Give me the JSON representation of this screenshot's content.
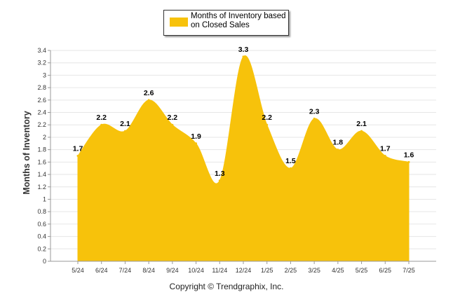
{
  "chart_data": {
    "type": "area",
    "legend": {
      "label": "Months of Inventory based on Closed Sales",
      "placement": "top-center"
    },
    "ylabel": "Months of Inventory",
    "xlabel": "",
    "ylim": [
      0,
      3.4
    ],
    "y_ticks": [
      0,
      0.2,
      0.4,
      0.6,
      0.8,
      1,
      1.2,
      1.4,
      1.6,
      1.8,
      2,
      2.2,
      2.4,
      2.6,
      2.8,
      3,
      3.2,
      3.4
    ],
    "y_tick_labels": [
      "0",
      "0.2",
      "0.4",
      "0.6",
      "0.8",
      "1",
      "1.2",
      "1.4",
      "1.6",
      "1.8",
      "2",
      "2.2",
      "2.4",
      "2.6",
      "2.8",
      "3",
      "3.2",
      "3.4"
    ],
    "grid": true,
    "categories": [
      "5/24",
      "6/24",
      "7/24",
      "8/24",
      "9/24",
      "10/24",
      "11/24",
      "12/24",
      "1/25",
      "2/25",
      "3/25",
      "4/25",
      "5/25",
      "6/25",
      "7/25"
    ],
    "series": [
      {
        "name": "Months of Inventory based on Closed Sales",
        "values": [
          1.7,
          2.2,
          2.1,
          2.6,
          2.2,
          1.9,
          1.3,
          3.3,
          2.2,
          1.5,
          2.3,
          1.8,
          2.1,
          1.7,
          1.6
        ],
        "labels": [
          "1.7",
          "2.2",
          "2.1",
          "2.6",
          "2.2",
          "1.9",
          "1.3",
          "3.3",
          "2.2",
          "1.5",
          "2.3",
          "1.8",
          "2.1",
          "1.7",
          "1.6"
        ],
        "color": "#f7c20b"
      }
    ]
  },
  "footer": {
    "copyright": "Copyright © Trendgraphix, Inc."
  }
}
